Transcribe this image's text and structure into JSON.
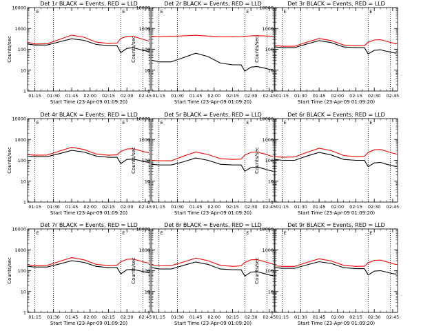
{
  "figure": {
    "legend_text": "BLACK = Events, RED = LLD",
    "xlabel": "Start Time (23-Apr-09 01:09:20)",
    "ylabel": "Counts/sec",
    "x_tick_labels": [
      "01:15",
      "01:30",
      "01:45",
      "02:00",
      "02:15",
      "02:30",
      "02:45"
    ],
    "y_tick_labels": [
      "1",
      "10",
      "100",
      "1000",
      "10000"
    ],
    "marker_label": "E",
    "colors": {
      "events": "#000000",
      "lld": "#ff0000",
      "axes": "#000000"
    }
  },
  "chart_data": [
    {
      "type": "line",
      "title": "Det 1r BLACK = Events, RED = LLD",
      "xlabel": "Start Time (23-Apr-09 01:09:20)",
      "ylabel": "Counts/sec",
      "x": [
        "01:09",
        "01:15",
        "01:25",
        "01:35",
        "01:45",
        "01:55",
        "02:05",
        "02:15",
        "02:22",
        "02:25",
        "02:30",
        "02:35",
        "02:40",
        "02:45",
        "02:48"
      ],
      "xlim": [
        "01:09",
        "02:49"
      ],
      "ylim": [
        1,
        10000
      ],
      "yscale": "log",
      "vlines": [
        "01:15",
        "01:30",
        "02:25",
        "02:43"
      ],
      "series": [
        {
          "name": "Events",
          "color": "#000000",
          "values": [
            180,
            160,
            160,
            230,
            320,
            270,
            170,
            150,
            150,
            70,
            110,
            120,
            100,
            85,
            75
          ]
        },
        {
          "name": "LLD",
          "color": "#ff0000",
          "values": [
            220,
            180,
            185,
            300,
            480,
            380,
            220,
            190,
            200,
            330,
            420,
            420,
            340,
            280,
            250
          ]
        }
      ]
    },
    {
      "type": "line",
      "title": "Det 2r BLACK = Events, RED = LLD",
      "xlabel": "Start Time (23-Apr-09 01:09:20)",
      "ylabel": "Counts/sec",
      "x": [
        "01:09",
        "01:15",
        "01:25",
        "01:35",
        "01:45",
        "01:55",
        "02:05",
        "02:15",
        "02:22",
        "02:25",
        "02:30",
        "02:35",
        "02:40",
        "02:45",
        "02:48"
      ],
      "xlim": [
        "01:09",
        "02:49"
      ],
      "ylim": [
        1,
        10000
      ],
      "yscale": "log",
      "vlines": [
        "01:15",
        "01:30",
        "02:25",
        "02:43"
      ],
      "series": [
        {
          "name": "Events",
          "color": "#000000",
          "values": [
            30,
            25,
            25,
            40,
            65,
            45,
            22,
            18,
            18,
            9,
            14,
            15,
            13,
            11,
            10
          ]
        },
        {
          "name": "LLD",
          "color": "#ff0000",
          "values": [
            420,
            410,
            420,
            440,
            470,
            430,
            400,
            400,
            410,
            420,
            440,
            450,
            440,
            430,
            420
          ]
        }
      ]
    },
    {
      "type": "line",
      "title": "Det 3r BLACK = Events, RED = LLD",
      "xlabel": "Start Time (23-Apr-09 01:09:20)",
      "ylabel": "Counts/sec",
      "x": [
        "01:09",
        "01:15",
        "01:25",
        "01:35",
        "01:45",
        "01:55",
        "02:05",
        "02:15",
        "02:22",
        "02:25",
        "02:30",
        "02:35",
        "02:40",
        "02:45",
        "02:48"
      ],
      "xlim": [
        "01:09",
        "02:49"
      ],
      "ylim": [
        1,
        10000
      ],
      "yscale": "log",
      "vlines": [
        "01:15",
        "01:30",
        "02:25",
        "02:43"
      ],
      "series": [
        {
          "name": "Events",
          "color": "#000000",
          "values": [
            130,
            120,
            120,
            180,
            260,
            210,
            130,
            120,
            120,
            60,
            90,
            95,
            80,
            70,
            65
          ]
        },
        {
          "name": "LLD",
          "color": "#ff0000",
          "values": [
            150,
            140,
            140,
            220,
            330,
            260,
            160,
            145,
            150,
            220,
            280,
            290,
            240,
            200,
            180
          ]
        }
      ]
    },
    {
      "type": "line",
      "title": "Det 4r BLACK = Events, RED = LLD",
      "xlabel": "Start Time (23-Apr-09 01:09:20)",
      "ylabel": "Counts/sec",
      "x": [
        "01:09",
        "01:15",
        "01:25",
        "01:35",
        "01:45",
        "01:55",
        "02:05",
        "02:15",
        "02:22",
        "02:25",
        "02:30",
        "02:35",
        "02:40",
        "02:45",
        "02:48"
      ],
      "xlim": [
        "01:09",
        "02:49"
      ],
      "ylim": [
        1,
        10000
      ],
      "yscale": "log",
      "vlines": [
        "01:15",
        "01:30",
        "02:25",
        "02:43"
      ],
      "series": [
        {
          "name": "Events",
          "color": "#000000",
          "values": [
            160,
            150,
            150,
            210,
            300,
            250,
            160,
            140,
            140,
            70,
            110,
            115,
            100,
            85,
            80
          ]
        },
        {
          "name": "LLD",
          "color": "#ff0000",
          "values": [
            190,
            175,
            180,
            280,
            420,
            330,
            200,
            175,
            185,
            270,
            350,
            360,
            300,
            250,
            230
          ]
        }
      ]
    },
    {
      "type": "line",
      "title": "Det 5r BLACK = Events, RED = LLD",
      "xlabel": "Start Time (23-Apr-09 01:09:20)",
      "ylabel": "Counts/sec",
      "x": [
        "01:09",
        "01:15",
        "01:25",
        "01:35",
        "01:45",
        "01:55",
        "02:05",
        "02:15",
        "02:22",
        "02:25",
        "02:30",
        "02:35",
        "02:40",
        "02:45",
        "02:48"
      ],
      "xlim": [
        "01:09",
        "02:49"
      ],
      "ylim": [
        1,
        10000
      ],
      "yscale": "log",
      "vlines": [
        "01:15",
        "01:30",
        "02:25",
        "02:43"
      ],
      "series": [
        {
          "name": "Events",
          "color": "#000000",
          "values": [
            65,
            60,
            60,
            85,
            130,
            100,
            65,
            60,
            60,
            30,
            45,
            48,
            40,
            33,
            30
          ]
        },
        {
          "name": "LLD",
          "color": "#ff0000",
          "values": [
            100,
            95,
            95,
            160,
            250,
            190,
            120,
            110,
            115,
            180,
            240,
            250,
            210,
            170,
            150
          ]
        }
      ]
    },
    {
      "type": "line",
      "title": "Det 6r BLACK = Events, RED = LLD",
      "xlabel": "Start Time (23-Apr-09 01:09:20)",
      "ylabel": "Counts/sec",
      "x": [
        "01:09",
        "01:15",
        "01:25",
        "01:35",
        "01:45",
        "01:55",
        "02:05",
        "02:15",
        "02:22",
        "02:25",
        "02:30",
        "02:35",
        "02:40",
        "02:45",
        "02:48"
      ],
      "xlim": [
        "01:09",
        "02:49"
      ],
      "ylim": [
        1,
        10000
      ],
      "yscale": "log",
      "vlines": [
        "01:15",
        "01:30",
        "02:25",
        "02:43"
      ],
      "series": [
        {
          "name": "Events",
          "color": "#000000",
          "values": [
            110,
            100,
            100,
            160,
            240,
            180,
            110,
            100,
            100,
            50,
            75,
            80,
            65,
            55,
            50
          ]
        },
        {
          "name": "LLD",
          "color": "#ff0000",
          "values": [
            150,
            140,
            145,
            240,
            380,
            290,
            170,
            150,
            155,
            240,
            320,
            330,
            270,
            220,
            200
          ]
        }
      ]
    },
    {
      "type": "line",
      "title": "Det 7r BLACK = Events, RED = LLD",
      "xlabel": "Start Time (23-Apr-09 01:09:20)",
      "ylabel": "Counts/sec",
      "x": [
        "01:09",
        "01:15",
        "01:25",
        "01:35",
        "01:45",
        "01:55",
        "02:05",
        "02:15",
        "02:22",
        "02:25",
        "02:30",
        "02:35",
        "02:40",
        "02:45",
        "02:48"
      ],
      "xlim": [
        "01:09",
        "02:49"
      ],
      "ylim": [
        1,
        10000
      ],
      "yscale": "log",
      "vlines": [
        "01:15",
        "01:30",
        "02:25",
        "02:43"
      ],
      "series": [
        {
          "name": "Events",
          "color": "#000000",
          "values": [
            160,
            150,
            150,
            210,
            300,
            250,
            160,
            140,
            140,
            70,
            110,
            115,
            100,
            85,
            80
          ]
        },
        {
          "name": "LLD",
          "color": "#ff0000",
          "values": [
            190,
            175,
            180,
            280,
            420,
            330,
            200,
            175,
            185,
            270,
            350,
            360,
            300,
            250,
            230
          ]
        }
      ]
    },
    {
      "type": "line",
      "title": "Det 8r BLACK = Events, RED = LLD",
      "xlabel": "Start Time (23-Apr-09 01:09:20)",
      "ylabel": "Counts/sec",
      "x": [
        "01:09",
        "01:15",
        "01:25",
        "01:35",
        "01:45",
        "01:55",
        "02:05",
        "02:15",
        "02:22",
        "02:25",
        "02:30",
        "02:35",
        "02:40",
        "02:45",
        "02:48"
      ],
      "xlim": [
        "01:09",
        "02:49"
      ],
      "ylim": [
        1,
        10000
      ],
      "yscale": "log",
      "vlines": [
        "01:15",
        "01:30",
        "02:25",
        "02:43"
      ],
      "series": [
        {
          "name": "Events",
          "color": "#000000",
          "values": [
            140,
            120,
            120,
            180,
            260,
            200,
            120,
            110,
            110,
            55,
            85,
            90,
            75,
            62,
            58
          ]
        },
        {
          "name": "LLD",
          "color": "#ff0000",
          "values": [
            190,
            170,
            175,
            260,
            400,
            300,
            180,
            160,
            170,
            250,
            330,
            340,
            280,
            230,
            210
          ]
        }
      ]
    },
    {
      "type": "line",
      "title": "Det 9r BLACK = Events, RED = LLD",
      "xlabel": "Start Time (23-Apr-09 01:09:20)",
      "ylabel": "Counts/sec",
      "x": [
        "01:09",
        "01:15",
        "01:25",
        "01:35",
        "01:45",
        "01:55",
        "02:05",
        "02:15",
        "02:22",
        "02:25",
        "02:30",
        "02:35",
        "02:40",
        "02:45",
        "02:48"
      ],
      "xlim": [
        "01:09",
        "02:49"
      ],
      "ylim": [
        1,
        10000
      ],
      "yscale": "log",
      "vlines": [
        "01:15",
        "01:30",
        "02:25",
        "02:43"
      ],
      "series": [
        {
          "name": "Events",
          "color": "#000000",
          "values": [
            140,
            130,
            130,
            190,
            270,
            220,
            140,
            125,
            125,
            62,
            95,
            100,
            85,
            72,
            68
          ]
        },
        {
          "name": "LLD",
          "color": "#ff0000",
          "values": [
            170,
            160,
            160,
            250,
            370,
            290,
            180,
            160,
            165,
            240,
            310,
            320,
            265,
            215,
            195
          ]
        }
      ]
    }
  ]
}
